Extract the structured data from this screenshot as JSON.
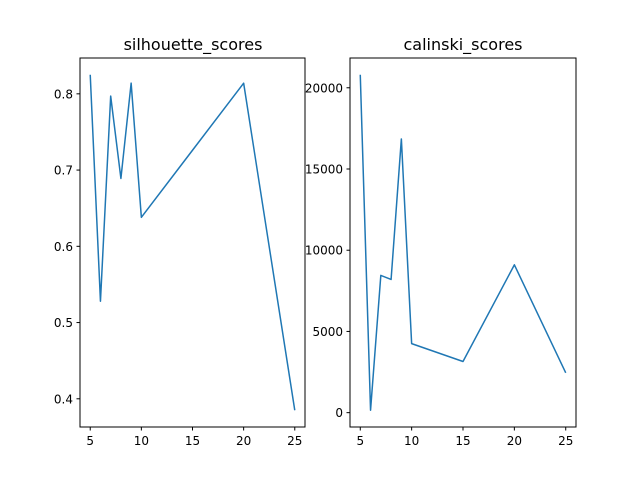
{
  "chart_data": [
    {
      "type": "line",
      "title": "silhouette_scores",
      "xlabel": "",
      "ylabel": "",
      "x": [
        5,
        6,
        7,
        8,
        9,
        10,
        15,
        20,
        25
      ],
      "series": [
        {
          "values": [
            0.825,
            0.528,
            0.797,
            0.689,
            0.814,
            0.638,
            0.726,
            0.814,
            0.385
          ]
        }
      ],
      "xlim": [
        4,
        26
      ],
      "ylim": [
        0.363,
        0.847
      ],
      "xticks": [
        5,
        10,
        15,
        20,
        25
      ],
      "yticks": [
        0.4,
        0.5,
        0.6,
        0.7,
        0.8
      ],
      "ytick_labels": [
        "0.4",
        "0.5",
        "0.6",
        "0.7",
        "0.8"
      ],
      "grid": false,
      "color": "#1f77b4"
    },
    {
      "type": "line",
      "title": "calinski_scores",
      "xlabel": "",
      "ylabel": "",
      "x": [
        5,
        6,
        7,
        8,
        9,
        10,
        15,
        20,
        25
      ],
      "series": [
        {
          "values": [
            20800,
            150,
            8450,
            8200,
            16850,
            4250,
            3150,
            9100,
            2450
          ]
        }
      ],
      "xlim": [
        4,
        26
      ],
      "ylim": [
        -883,
        21833
      ],
      "xticks": [
        5,
        10,
        15,
        20,
        25
      ],
      "yticks": [
        0,
        5000,
        10000,
        15000,
        20000
      ],
      "ytick_labels": [
        "0",
        "5000",
        "10000",
        "15000",
        "20000"
      ],
      "grid": false,
      "color": "#1f77b4"
    }
  ]
}
